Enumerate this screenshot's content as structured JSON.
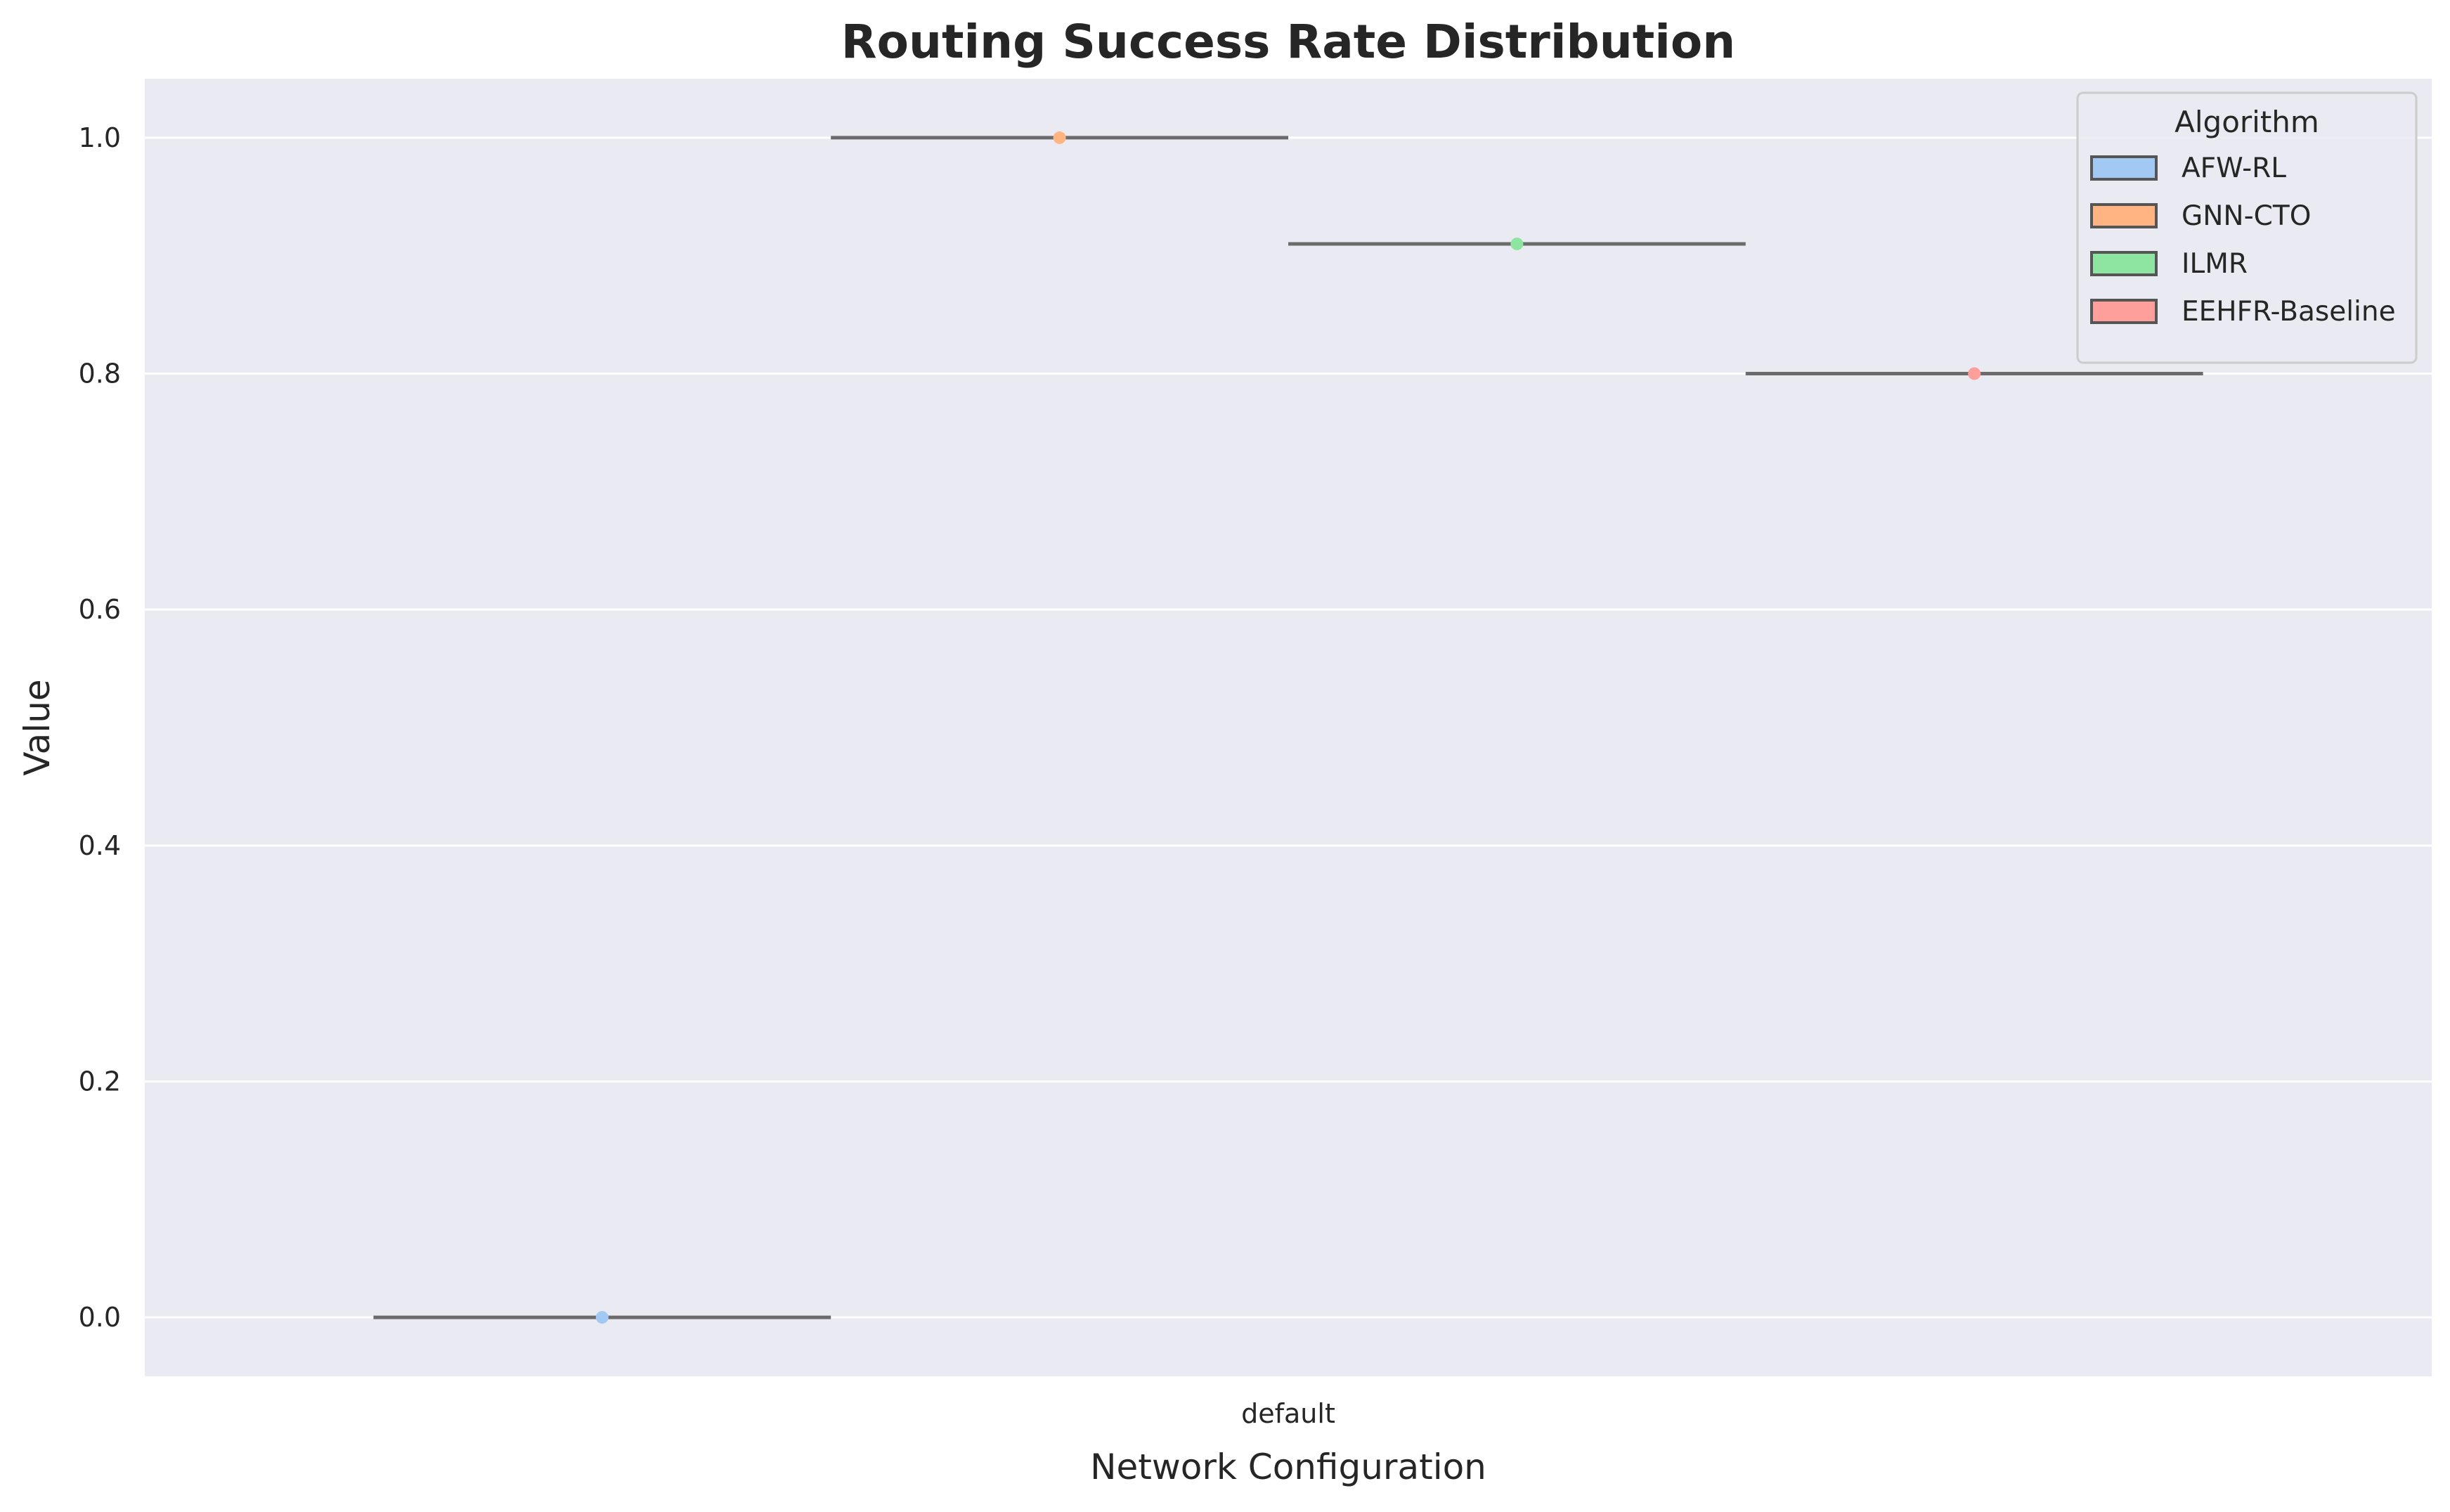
{
  "chart_data": {
    "type": "violin",
    "title": "Routing Success Rate Distribution",
    "xlabel": "Network Configuration",
    "ylabel": "Value",
    "categories": [
      "default"
    ],
    "ylim": [
      -0.05,
      1.05
    ],
    "yticks": [
      0.0,
      0.2,
      0.4,
      0.6,
      0.8,
      1.0
    ],
    "ytick_labels": [
      "0.0",
      "0.2",
      "0.4",
      "0.6",
      "0.8",
      "1.0"
    ],
    "grid": true,
    "legend": {
      "title": "Algorithm",
      "placement": "top-right"
    },
    "series": [
      {
        "name": "AFW-RL",
        "category": "default",
        "value": 0.0,
        "color": "#a1c9f4"
      },
      {
        "name": "GNN-CTO",
        "category": "default",
        "value": 1.0,
        "color": "#ffb482"
      },
      {
        "name": "ILMR",
        "category": "default",
        "value": 0.91,
        "color": "#8de5a1"
      },
      {
        "name": "EEHFR-Baseline",
        "category": "default",
        "value": 0.8,
        "color": "#ff9f9b"
      }
    ]
  },
  "colors": {
    "plot_background": "#eaeaf2",
    "grid": "#ffffff",
    "median_line": "#6b6b6b",
    "text": "#262626"
  }
}
